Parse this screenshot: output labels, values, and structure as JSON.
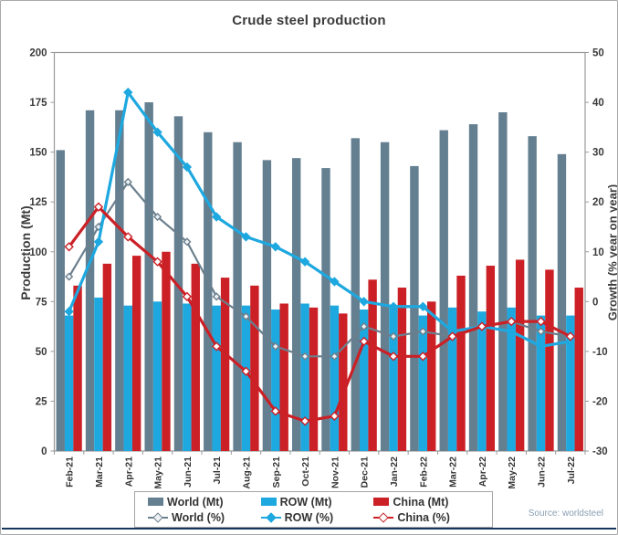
{
  "chart_data": {
    "type": "combo-bar-line",
    "title": "Crude steel production",
    "ylabel_left": "Production (Mt)",
    "ylabel_right": "Growth (% year on year)",
    "ylim_left": [
      0,
      200
    ],
    "left_tick_step": 25,
    "ylim_right": [
      -30,
      50
    ],
    "right_tick_step": 10,
    "grid": false,
    "legend_position": "bottom",
    "source": "Source: worldsteel",
    "categories": [
      "Feb-21",
      "Mar-21",
      "Apr-21",
      "May-21",
      "Jun-21",
      "Jul-21",
      "Aug-21",
      "Sep-21",
      "Oct-21",
      "Nov-21",
      "Dec-21",
      "Jan-22",
      "Feb-22",
      "Mar-22",
      "Apr-22",
      "May-22",
      "Jun-22",
      "Jul-22"
    ],
    "bar_series": [
      {
        "name": "World (Mt)",
        "color": "#647f90",
        "values": [
          151,
          171,
          171,
          175,
          168,
          160,
          155,
          146,
          147,
          142,
          157,
          155,
          143,
          161,
          164,
          170,
          158,
          149
        ]
      },
      {
        "name": "ROW (Mt)",
        "color": "#1ea8e0",
        "values": [
          68,
          77,
          73,
          75,
          74,
          73,
          73,
          71,
          74,
          73,
          71,
          73,
          68,
          72,
          70,
          72,
          68,
          68
        ]
      },
      {
        "name": "China (Mt)",
        "color": "#cb2026",
        "values": [
          83,
          94,
          98,
          100,
          94,
          87,
          83,
          74,
          72,
          69,
          86,
          82,
          75,
          88,
          93,
          96,
          91,
          82
        ]
      }
    ],
    "line_series": [
      {
        "name": "World (%)",
        "color": "#6b7f8d",
        "marker_fill": "#eef2f5",
        "values": [
          5,
          15,
          24,
          17,
          12,
          1,
          -3,
          -9,
          -11,
          -11,
          -5,
          -7,
          -6,
          -7,
          -5,
          -4,
          -6,
          -7
        ]
      },
      {
        "name": "ROW (%)",
        "color": "#1ea8e0",
        "marker_fill": "#1ea8e0",
        "values": [
          -2,
          12,
          42,
          34,
          27,
          17,
          13,
          11,
          8,
          4,
          0,
          -1,
          -1,
          -6,
          -5,
          -6,
          -9,
          -8
        ]
      },
      {
        "name": "China (%)",
        "color": "#cb2026",
        "marker_fill": "#ffffff",
        "values": [
          11,
          19,
          13,
          8,
          1,
          -9,
          -14,
          -22,
          -24,
          -23,
          -8,
          -11,
          -11,
          -7,
          -5,
          -4,
          -4,
          -7
        ]
      }
    ]
  }
}
